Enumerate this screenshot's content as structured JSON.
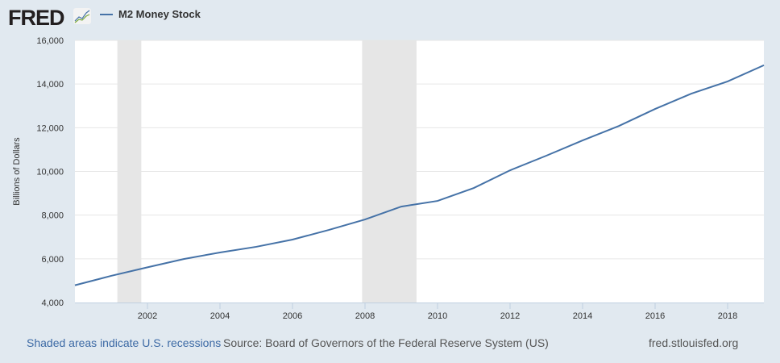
{
  "logo": {
    "text": "FRED",
    "icon": "line-chart-icon"
  },
  "chart_data": {
    "type": "line",
    "title": "",
    "xlabel": "",
    "ylabel": "Billions of Dollars",
    "xlim": [
      2000,
      2019
    ],
    "ylim": [
      4000,
      16000
    ],
    "grid": true,
    "legend_position": "top-left",
    "x_ticks": [
      "2002",
      "2004",
      "2006",
      "2008",
      "2010",
      "2012",
      "2014",
      "2016",
      "2018"
    ],
    "y_ticks": [
      "4,000",
      "6,000",
      "8,000",
      "10,000",
      "12,000",
      "14,000",
      "16,000"
    ],
    "recessions": [
      [
        2001.17,
        2001.83
      ],
      [
        2007.92,
        2009.42
      ]
    ],
    "series": [
      {
        "name": "M2 Money Stock",
        "color": "#4572a7",
        "x": [
          2000,
          2001,
          2002,
          2003,
          2004,
          2005,
          2006,
          2007,
          2008,
          2009,
          2010,
          2011,
          2012,
          2013,
          2014,
          2015,
          2016,
          2017,
          2018,
          2019
        ],
        "y": [
          4790,
          5220,
          5610,
          5990,
          6290,
          6550,
          6880,
          7320,
          7800,
          8390,
          8650,
          9240,
          10050,
          10720,
          11420,
          12080,
          12860,
          13560,
          14120,
          14860
        ]
      }
    ]
  },
  "footer": {
    "recession_note": "Shaded areas indicate U.S. recessions",
    "source": "Source: Board of Governors of the Federal Reserve System (US)",
    "site": "fred.stlouisfed.org"
  }
}
